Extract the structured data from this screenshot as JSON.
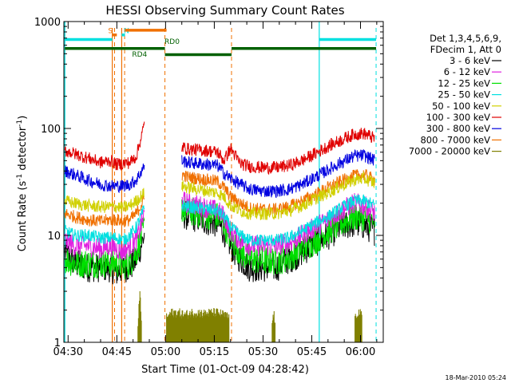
{
  "chart_data": {
    "type": "line",
    "title": "HESSI Observing Summary Count Rates",
    "xlabel": "Start Time (01-Oct-09 04:28:42)",
    "ylabel_main": "Count Rate (s",
    "ylabel_sup1": "-1",
    "ylabel_mid": " detector",
    "ylabel_sup2": "-1",
    "ylabel_end": ")",
    "yscale": "log",
    "ylim": [
      1,
      1000
    ],
    "xlim_minutes": [
      268.7,
      367.0
    ],
    "x_ticks": [
      {
        "min": 270,
        "label": "04:30"
      },
      {
        "min": 285,
        "label": "04:45"
      },
      {
        "min": 300,
        "label": "05:00"
      },
      {
        "min": 315,
        "label": "05:15"
      },
      {
        "min": 330,
        "label": "05:30"
      },
      {
        "min": 345,
        "label": "05:45"
      },
      {
        "min": 360,
        "label": "06:00"
      }
    ],
    "y_ticks": [
      {
        "value": 1,
        "label": "1"
      },
      {
        "value": 10,
        "label": "10"
      },
      {
        "value": 100,
        "label": "100"
      },
      {
        "value": 1000,
        "label": "1000"
      }
    ],
    "legend_header": [
      "Det 1,3,4,5,6,9,",
      "FDecim 1, Att 0"
    ],
    "legend_placement": "right",
    "series": [
      {
        "name": "3 - 6 keV",
        "color": "#000000",
        "x": [
          269,
          272,
          276,
          280,
          283,
          285,
          287,
          289,
          291,
          293.5,
          305,
          307,
          310,
          313,
          316,
          318,
          320,
          323,
          326,
          330,
          334,
          338,
          342,
          346,
          350,
          354,
          358,
          361,
          364.5
        ],
        "y": [
          7,
          5.5,
          5,
          5,
          5,
          4.5,
          5,
          5,
          6,
          10,
          16,
          15,
          14.5,
          13.5,
          13,
          11,
          8,
          6,
          5,
          5,
          5,
          6,
          7,
          8.5,
          10,
          12,
          13,
          12.5,
          11
        ]
      },
      {
        "name": "6 - 12 keV",
        "color": "#e020e0",
        "x": [
          269,
          272,
          276,
          280,
          283,
          285,
          287,
          289,
          291,
          293.5,
          305,
          307,
          310,
          313,
          316,
          318,
          320,
          323,
          326,
          330,
          334,
          338,
          342,
          346,
          350,
          354,
          358,
          361,
          364.5
        ],
        "y": [
          9,
          8,
          8,
          7.5,
          8,
          7.5,
          7,
          8,
          9,
          16,
          21,
          20,
          19,
          18,
          17,
          15,
          11,
          9,
          8,
          8,
          8,
          8.5,
          10,
          12,
          14,
          17,
          20,
          19,
          16
        ]
      },
      {
        "name": "12 - 25 keV",
        "color": "#00e000",
        "x": [
          269,
          272,
          276,
          280,
          283,
          285,
          287,
          289,
          291,
          293.5,
          305,
          307,
          310,
          313,
          316,
          318,
          320,
          323,
          326,
          330,
          334,
          338,
          342,
          346,
          350,
          354,
          358,
          361,
          364.5
        ],
        "y": [
          6,
          5.5,
          5.5,
          5.5,
          5.5,
          5.5,
          5.2,
          5.5,
          7,
          12,
          18,
          17,
          16,
          15.5,
          15,
          13,
          9.5,
          7,
          6,
          5.8,
          5.8,
          6.2,
          7.5,
          9,
          11,
          13,
          15,
          15,
          13.5
        ]
      },
      {
        "name": "25 - 50 keV",
        "color": "#00e0e0",
        "x": [
          269,
          272,
          276,
          280,
          283,
          285,
          287,
          289,
          291,
          293.5,
          305,
          307,
          310,
          313,
          316,
          318,
          320,
          323,
          326,
          330,
          334,
          338,
          342,
          346,
          350,
          354,
          358,
          361,
          364.5
        ],
        "y": [
          11,
          10,
          10,
          9.5,
          9.5,
          9.5,
          9,
          10,
          12,
          18,
          19,
          18.5,
          18,
          17.5,
          17,
          15,
          12,
          10,
          9,
          9,
          9,
          9.5,
          11,
          13,
          15,
          18,
          21,
          21,
          19
        ]
      },
      {
        "name": "50 - 100 keV",
        "color": "#d0d000",
        "x": [
          269,
          272,
          276,
          280,
          283,
          285,
          287,
          289,
          291,
          293.5,
          305,
          307,
          310,
          313,
          316,
          318,
          320,
          323,
          326,
          330,
          334,
          338,
          342,
          346,
          350,
          354,
          358,
          361,
          364.5
        ],
        "y": [
          21,
          20,
          19,
          18.5,
          18.5,
          18.5,
          18,
          19,
          21,
          25,
          29,
          28,
          27,
          26,
          25,
          23,
          19,
          17,
          16,
          16,
          16,
          17,
          19,
          22,
          25,
          29,
          33,
          34,
          31
        ]
      },
      {
        "name": "100 - 300 keV",
        "color": "#e00000",
        "x": [
          269,
          272,
          276,
          280,
          283,
          285,
          287,
          289,
          291,
          293.5,
          305,
          307,
          310,
          313,
          316,
          318,
          320,
          323,
          326,
          330,
          334,
          338,
          342,
          346,
          350,
          354,
          358,
          361,
          364.5
        ],
        "y": [
          62,
          58,
          53,
          48,
          50,
          46,
          47,
          48,
          55,
          110,
          67,
          64,
          63,
          62,
          60,
          50,
          65,
          47,
          44,
          43,
          43,
          45,
          50,
          58,
          68,
          78,
          88,
          90,
          80
        ]
      },
      {
        "name": "300 - 800 keV",
        "color": "#0000e0",
        "x": [
          269,
          272,
          276,
          280,
          283,
          285,
          287,
          289,
          291,
          293.5,
          305,
          307,
          310,
          313,
          316,
          318,
          320,
          323,
          326,
          330,
          334,
          338,
          342,
          346,
          350,
          354,
          358,
          361,
          364.5
        ],
        "y": [
          40,
          37,
          33,
          30,
          29,
          29,
          29,
          30,
          33,
          45,
          50,
          48,
          47,
          46,
          45,
          38,
          34,
          30,
          27,
          26,
          26,
          27,
          30,
          35,
          41,
          48,
          55,
          56,
          50
        ]
      },
      {
        "name": "800 - 7000 keV",
        "color": "#f07000",
        "x": [
          269,
          272,
          276,
          280,
          283,
          285,
          287,
          289,
          291,
          293.5,
          305,
          307,
          310,
          313,
          316,
          318,
          320,
          323,
          326,
          330,
          334,
          338,
          342,
          346,
          350,
          354,
          358,
          361,
          364.5
        ],
        "y": [
          16,
          15,
          14,
          13.5,
          14,
          14,
          13.5,
          14,
          16,
          22,
          37,
          35,
          34,
          33,
          32,
          28,
          23,
          20,
          18,
          17.5,
          17.5,
          18.5,
          21,
          24,
          28,
          32,
          36,
          37,
          33
        ]
      },
      {
        "name": "7000 - 20000 keV",
        "color": "#808000",
        "segments": [
          {
            "x": [
              291.5,
              291.8,
              292.2,
              292.6
            ],
            "y": [
              1.4,
              2.5,
              3,
              1.6
            ]
          },
          {
            "x": [
              300.3,
              302,
              304,
              306,
              308,
              310,
              312,
              314,
              316,
              318,
              319.5
            ],
            "y": [
              1.8,
              2,
              2,
              1.9,
              2,
              2,
              1.95,
              2,
              2,
              1.9,
              1.8
            ]
          },
          {
            "x": [
              332.8,
              333.3,
              333.8
            ],
            "y": [
              1.6,
              2,
              1.5
            ]
          },
          {
            "x": [
              358.3,
              359,
              359.8,
              360.5
            ],
            "y": [
              1.7,
              2,
              2,
              1.8
            ]
          }
        ]
      }
    ],
    "markers": {
      "vertical_solid_cyan": [
        269.0,
        347.3
      ],
      "vertical_solid_orange": [
        283.6,
        286.5
      ],
      "vertical_dashed_orange": [
        284.3,
        287.4,
        299.8,
        320.3
      ],
      "vertical_dashed_cyan": [
        364.8
      ],
      "bars": [
        {
          "label": "S",
          "color": "#f07000",
          "x_start": 283.6,
          "x_end": 285.0,
          "value": 750,
          "label_at": 283.0
        },
        {
          "label": "N",
          "color": "#00e0e0",
          "x_start": 286.5,
          "x_end": 287.5,
          "value": 750,
          "label_at": 288.0
        },
        {
          "label": "",
          "color": "#f07000",
          "x_start": 287.5,
          "x_end": 300.3,
          "value": 830
        },
        {
          "label": "",
          "color": "#00e0e0",
          "x_start": 269.0,
          "x_end": 283.6,
          "value": 680
        },
        {
          "label": "",
          "color": "#00e0e0",
          "x_start": 347.3,
          "x_end": 364.8,
          "value": 680
        },
        {
          "label": "",
          "color": "#006000",
          "x_start": 269.0,
          "x_end": 299.8,
          "value": 560
        },
        {
          "label": "",
          "color": "#006000",
          "x_start": 299.8,
          "x_end": 320.3,
          "value": 490
        },
        {
          "label": "",
          "color": "#006000",
          "x_start": 320.3,
          "x_end": 364.8,
          "value": 560
        }
      ],
      "bar_labels": [
        {
          "text": "RD4",
          "color": "#006000",
          "x": 292.0,
          "value": 470
        },
        {
          "text": "RD0",
          "color": "#006000",
          "x": 302.0,
          "value": 620
        }
      ]
    }
  },
  "footer_timestamp": "18-Mar-2010 05:24"
}
